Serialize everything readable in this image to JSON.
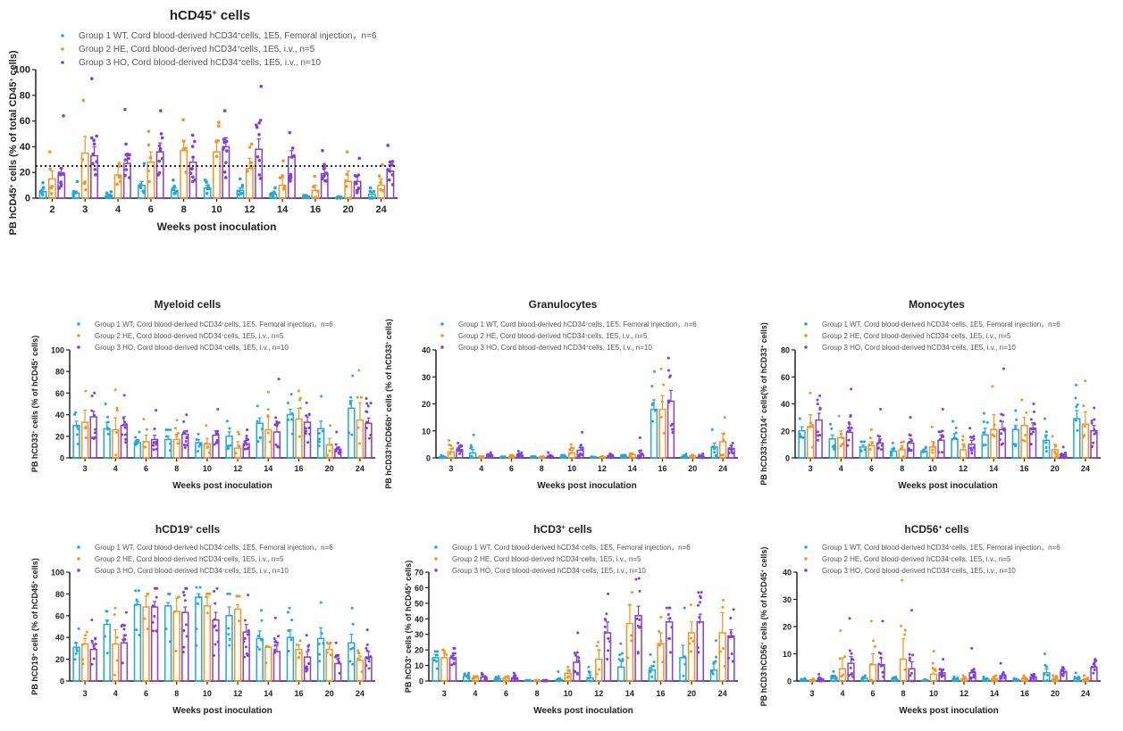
{
  "legend": {
    "series": [
      {
        "name": "Group 1 WT, Cord blood-derived hCD34+cells, 1E5, Femoral injection, n=6",
        "pre": "Group 1 WT, Cord blood-derived hCD34",
        "post": "cells, 1E5, Femoral injection，n=6",
        "color": "#1ea7e1"
      },
      {
        "name": "Group 2 HE, Cord blood-derived hCD34+cells, 1E5, i.v., n=5",
        "pre": "Group 2 HE, Cord blood-derived hCD34",
        "post": "cells, 1E5, i.v., n=5",
        "color": "#f7931e"
      },
      {
        "name": "Group 3 HO, Cord blood-derived hCD34+cells, 1E5, i.v., n=10",
        "pre": "Group 3 HO, Cord blood-derived hCD34",
        "post": "cells, 1E5, i.v., n=10",
        "color": "#7f3fe0"
      }
    ]
  },
  "chart_data": [
    {
      "id": "hcd45",
      "type": "bar",
      "title": "hCD45+ cells",
      "title_parts": [
        "hCD45",
        "+",
        " cells"
      ],
      "xlabel": "Weeks post inoculation",
      "ylabel": "PB hCD45+ cells (% of total CD45+ cells)",
      "ylabel_parts": [
        "PB hCD45",
        "+",
        " cells  (% of total CD45",
        "+",
        " cells)"
      ],
      "ylim": [
        0,
        100
      ],
      "yticks": [
        0,
        20,
        40,
        60,
        80,
        100
      ],
      "reference_line": 25,
      "categories": [
        "2",
        "3",
        "4",
        "6",
        "8",
        "10",
        "12",
        "14",
        "16",
        "20",
        "24"
      ],
      "series": [
        {
          "name": "Group 1 WT",
          "values": [
            5,
            4,
            2,
            10,
            6,
            8,
            6,
            3,
            1.5,
            0.5,
            3
          ],
          "errors": [
            2,
            1.5,
            1,
            3,
            2,
            2,
            2,
            1.5,
            0.5,
            0.3,
            1.5
          ],
          "max_points": [
            12,
            13,
            5,
            27,
            14,
            14,
            15,
            8,
            2,
            1,
            8
          ]
        },
        {
          "name": "Group 2 HE",
          "values": [
            15,
            35,
            18,
            28,
            37,
            36,
            23,
            10,
            6,
            13,
            10
          ],
          "errors": [
            6,
            13,
            7,
            8,
            8,
            9,
            8,
            6,
            4,
            8,
            5
          ],
          "max_points": [
            36,
            76,
            27,
            52,
            61,
            59,
            42,
            29,
            17,
            36,
            26
          ]
        },
        {
          "name": "Group 3 HO",
          "values": [
            18,
            33,
            27,
            36,
            28,
            40,
            38,
            32,
            19,
            13,
            21
          ],
          "errors": [
            5,
            7,
            6,
            7,
            4,
            7,
            8,
            5,
            4,
            4,
            5
          ],
          "max_points": [
            64,
            93,
            69,
            68,
            49,
            68,
            87,
            51,
            37,
            31,
            41
          ]
        }
      ]
    },
    {
      "id": "myeloid",
      "type": "bar",
      "title": "Myeloid cells",
      "title_parts": [
        "Myeloid cells",
        "",
        ""
      ],
      "xlabel": "Weeks post inoculation",
      "ylabel": "PB hCD33+ cells (% of hCD45+ cells)",
      "ylabel_parts": [
        "PB hCD33",
        "+",
        " cells (% of hCD45",
        "+",
        " cells)"
      ],
      "ylim": [
        0,
        100
      ],
      "yticks": [
        0,
        20,
        40,
        60,
        80,
        100
      ],
      "categories": [
        "3",
        "4",
        "6",
        "8",
        "10",
        "12",
        "14",
        "16",
        "20",
        "24"
      ],
      "series": [
        {
          "name": "Group 1 WT",
          "values": [
            30,
            27,
            14,
            17,
            14,
            20,
            32,
            40,
            27,
            46
          ],
          "errors": [
            4,
            6,
            3,
            3,
            3,
            4,
            5,
            5,
            7,
            7
          ],
          "max_points": [
            42,
            50,
            24,
            26,
            22,
            34,
            48,
            59,
            57,
            76
          ]
        },
        {
          "name": "Group 2 HE",
          "values": [
            33,
            26,
            15,
            17,
            13,
            9,
            26,
            36,
            12,
            35
          ],
          "errors": [
            11,
            11,
            6,
            5,
            5,
            6,
            12,
            10,
            6,
            16
          ],
          "max_points": [
            62,
            63,
            36,
            35,
            30,
            24,
            61,
            62,
            30,
            81
          ]
        },
        {
          "name": "Group 3 HO",
          "values": [
            38,
            30,
            17,
            22,
            21,
            13,
            24,
            33,
            8,
            32
          ],
          "errors": [
            5,
            8,
            4,
            3,
            4,
            3,
            7,
            5,
            2,
            5
          ],
          "max_points": [
            60,
            58,
            44,
            40,
            45,
            26,
            73,
            51,
            24,
            55
          ]
        }
      ]
    },
    {
      "id": "granulocytes",
      "type": "bar",
      "title": "Granulocytes",
      "title_parts": [
        "Granulocytes",
        "",
        ""
      ],
      "xlabel": "Weeks post inoculation",
      "ylabel": "PB hCD33+hCD66b+ cells (% of hCD33+ cells)",
      "ylabel_parts": [
        "PB hCD33",
        "+",
        "hCD66b",
        "+",
        " cells (% of hCD33",
        "+",
        " cells)"
      ],
      "ylim": [
        0,
        40
      ],
      "yticks": [
        0,
        10,
        20,
        30,
        40
      ],
      "categories": [
        "3",
        "4",
        "6",
        "8",
        "10",
        "12",
        "14",
        "16",
        "20",
        "24"
      ],
      "series": [
        {
          "name": "Group 1 WT",
          "values": [
            0.5,
            1.8,
            0.2,
            0.3,
            0.6,
            0.2,
            0.5,
            18,
            0.5,
            4
          ],
          "errors": [
            0.3,
            1.3,
            0.1,
            0.1,
            0.3,
            0.1,
            0.3,
            3.5,
            0.3,
            1.5
          ],
          "max_points": [
            1,
            8.5,
            0.5,
            0.5,
            1,
            0.4,
            1,
            32,
            1.5,
            10.5
          ]
        },
        {
          "name": "Group 2 HE",
          "values": [
            2.2,
            0.3,
            0.5,
            0.3,
            1.8,
            0.3,
            1.2,
            18,
            0.7,
            6
          ],
          "errors": [
            1.2,
            0.2,
            0.3,
            0.2,
            1,
            0.2,
            0.5,
            5,
            0.4,
            3
          ],
          "max_points": [
            6.5,
            0.5,
            1,
            0.5,
            5,
            0.6,
            1.5,
            33,
            1,
            15
          ]
        },
        {
          "name": "Group 3 HO",
          "values": [
            3,
            1,
            1,
            0.6,
            2.8,
            0.6,
            1,
            21,
            0.5,
            3.5
          ],
          "errors": [
            0.8,
            0.4,
            0.4,
            0.3,
            1,
            0.3,
            0.8,
            4,
            0.3,
            1
          ],
          "max_points": [
            5.5,
            2,
            2.5,
            2,
            9.5,
            1.5,
            7.5,
            37,
            1.5,
            5.5
          ]
        }
      ]
    },
    {
      "id": "monocytes",
      "type": "bar",
      "title": "Monocytes",
      "title_parts": [
        "Monocytes",
        "",
        ""
      ],
      "xlabel": "Weeks post inoculation",
      "ylabel": "PB hCD33+hCD14+ cells(% of hCD33+ cells)",
      "ylabel_parts": [
        "PB hCD33",
        "+",
        "hCD14",
        "+",
        " cells(% of hCD33",
        "+",
        " cells)"
      ],
      "ylim": [
        0,
        80
      ],
      "yticks": [
        0,
        20,
        40,
        60,
        80
      ],
      "categories": [
        "3",
        "4",
        "6",
        "8",
        "10",
        "12",
        "14",
        "16",
        "20",
        "24"
      ],
      "series": [
        {
          "name": "Group 1 WT",
          "values": [
            20,
            14,
            8,
            5,
            5,
            14,
            17,
            21,
            13,
            29
          ],
          "errors": [
            3,
            3,
            1.5,
            1.5,
            1.5,
            4,
            5,
            3,
            4,
            6
          ],
          "max_points": [
            29,
            25,
            12,
            11,
            8,
            27,
            33,
            35,
            29,
            54
          ]
        },
        {
          "name": "Group 2 HE",
          "values": [
            23,
            15,
            9,
            6,
            8,
            6,
            21,
            24,
            6,
            25
          ],
          "errors": [
            9,
            5,
            3,
            3,
            4,
            4,
            11,
            6,
            4,
            9
          ],
          "max_points": [
            48,
            31,
            21,
            12,
            23,
            16,
            53,
            43,
            16,
            57
          ]
        },
        {
          "name": "Group 3 HO",
          "values": [
            28,
            19,
            11,
            11,
            13,
            10,
            21,
            22,
            2,
            20
          ],
          "errors": [
            5,
            6,
            3,
            3,
            4,
            3,
            6,
            4,
            1,
            4
          ],
          "max_points": [
            46,
            51,
            36,
            30,
            36,
            22,
            66,
            40,
            8,
            37
          ]
        }
      ]
    },
    {
      "id": "hcd19",
      "type": "bar",
      "title": "hCD19+ cells",
      "title_parts": [
        "hCD19",
        "+",
        " cells"
      ],
      "xlabel": "Weeks post inoculation",
      "ylabel": "PB hCD19+ cells (% of hCD45+ cells)",
      "ylabel_parts": [
        "PB hCD19",
        "+",
        " cells  (% of hCD45",
        "+",
        " cells)"
      ],
      "ylim": [
        0,
        100
      ],
      "yticks": [
        0,
        20,
        40,
        60,
        80,
        100
      ],
      "categories": [
        "3",
        "4",
        "6",
        "8",
        "10",
        "12",
        "14",
        "16",
        "20",
        "24"
      ],
      "series": [
        {
          "name": "Group 1 WT",
          "values": [
            31,
            52,
            70,
            69,
            77,
            60,
            39,
            40,
            39,
            35
          ],
          "errors": [
            4,
            4,
            3,
            3,
            3,
            8,
            7,
            7,
            10,
            8
          ],
          "max_points": [
            48,
            64,
            83,
            80,
            86,
            80,
            65,
            67,
            72,
            67
          ]
        },
        {
          "name": "Group 2 HE",
          "values": [
            34,
            34,
            68,
            64,
            69,
            66,
            31,
            29,
            29,
            19
          ],
          "errors": [
            5,
            13,
            10,
            12,
            8,
            4,
            1,
            4,
            5,
            4
          ],
          "max_points": [
            45,
            67,
            80,
            77,
            80,
            78,
            32,
            37,
            35,
            28
          ]
        },
        {
          "name": "Group 3 HO",
          "values": [
            29,
            35,
            68,
            63,
            56,
            45,
            27,
            22,
            16,
            22
          ],
          "errors": [
            5,
            7,
            5,
            5,
            7,
            7,
            6,
            5,
            4,
            5
          ],
          "max_points": [
            56,
            63,
            85,
            85,
            85,
            79,
            58,
            42,
            35,
            47
          ]
        }
      ]
    },
    {
      "id": "hcd3",
      "type": "bar",
      "title": "hCD3+ cells",
      "title_parts": [
        "hCD3",
        "+",
        " cells"
      ],
      "xlabel": "Weeks post inoculation",
      "ylabel": "PB hCD3+ cells (% of hCD45+ cells)",
      "ylabel_parts": [
        "PB hCD3",
        "+",
        " cells (% of hCD45",
        "+",
        " cells)"
      ],
      "ylim": [
        0,
        70
      ],
      "yticks": [
        0,
        10,
        20,
        30,
        40,
        50,
        60,
        70
      ],
      "categories": [
        "3",
        "4",
        "6",
        "8",
        "10",
        "12",
        "14",
        "16",
        "20",
        "24"
      ],
      "series": [
        {
          "name": "Group 1 WT",
          "values": [
            15,
            3,
            1.5,
            0.3,
            1,
            2,
            9,
            7,
            15,
            7
          ],
          "errors": [
            2,
            1,
            0.7,
            0.2,
            1,
            2,
            4,
            3,
            8,
            4
          ],
          "max_points": [
            19,
            5,
            3,
            0.5,
            6,
            9,
            24,
            17,
            47,
            26
          ]
        },
        {
          "name": "Group 2 HE",
          "values": [
            15,
            2,
            2,
            0.3,
            5,
            14,
            37,
            24,
            31,
            31
          ],
          "errors": [
            3,
            1,
            1,
            0.2,
            2,
            6,
            12,
            7,
            7,
            13
          ],
          "max_points": [
            20,
            3,
            3,
            0.5,
            9,
            25,
            57,
            41,
            49,
            52
          ]
        },
        {
          "name": "Group 3 HO",
          "values": [
            15,
            2.5,
            2,
            0.3,
            12,
            31,
            42,
            38,
            38,
            29
          ],
          "errors": [
            1.5,
            0.8,
            0.8,
            0.2,
            4,
            7,
            6,
            2,
            5,
            4
          ],
          "max_points": [
            21,
            5,
            5,
            0.5,
            31,
            56,
            66,
            47,
            57,
            46
          ]
        }
      ]
    },
    {
      "id": "hcd56",
      "type": "bar",
      "title": "hCD56+ cells",
      "title_parts": [
        "hCD56",
        "+",
        " cells"
      ],
      "xlabel": "Weeks post inoculation",
      "ylabel": "PB hCD3-hCD56+ cells (% of hCD45+ cells)",
      "ylabel_parts": [
        "PB hCD3",
        "-",
        "hCD56",
        "+",
        " cells (% of hCD45",
        "+",
        " cells)"
      ],
      "ylim": [
        0,
        40
      ],
      "yticks": [
        0,
        10,
        20,
        30,
        40
      ],
      "categories": [
        "3",
        "4",
        "6",
        "8",
        "10",
        "12",
        "14",
        "16",
        "20",
        "24"
      ],
      "series": [
        {
          "name": "Group 1 WT",
          "values": [
            0.5,
            1.5,
            1,
            0.8,
            0.3,
            0.7,
            0.7,
            0.5,
            3,
            0.8
          ],
          "errors": [
            0.2,
            0.6,
            0.4,
            0.3,
            0.1,
            0.3,
            0.3,
            0.2,
            1.5,
            0.5
          ],
          "max_points": [
            1,
            3.5,
            2,
            1.5,
            0.5,
            1.5,
            1.5,
            1,
            10,
            3
          ]
        },
        {
          "name": "Group 2 HE",
          "values": [
            0.3,
            4.5,
            6,
            8,
            2.5,
            0.8,
            0.8,
            0.8,
            0.8,
            0.5
          ],
          "errors": [
            0.2,
            4,
            4,
            7.5,
            2,
            0.4,
            0.5,
            0.5,
            0.5,
            0.4
          ],
          "max_points": [
            0.8,
            18.5,
            22,
            37,
            11,
            2,
            2,
            2,
            2,
            2
          ]
        },
        {
          "name": "Group 3 HO",
          "values": [
            0.7,
            6.5,
            6,
            4.5,
            3,
            3,
            2,
            1.5,
            3.5,
            5
          ],
          "errors": [
            0.4,
            2.5,
            2.5,
            2.5,
            1,
            1,
            0.6,
            0.4,
            0.7,
            1
          ],
          "max_points": [
            2.5,
            23,
            22,
            26,
            8,
            12,
            6.5,
            2.5,
            5,
            8
          ]
        }
      ]
    }
  ]
}
